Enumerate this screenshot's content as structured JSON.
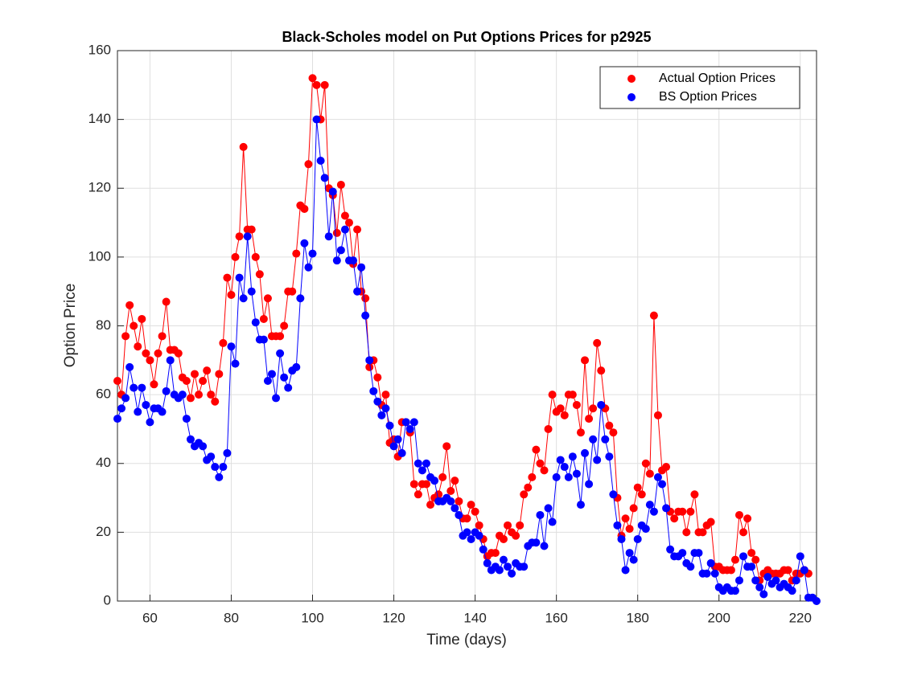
{
  "chart_data": {
    "type": "line",
    "title": "Black-Scholes model on Put Options Prices for p2925",
    "x_label": "Time (days)",
    "y_label": "Option Price",
    "x": [
      52,
      53,
      54,
      55,
      56,
      57,
      58,
      59,
      60,
      61,
      62,
      63,
      64,
      65,
      66,
      67,
      68,
      69,
      70,
      71,
      72,
      73,
      74,
      75,
      76,
      77,
      78,
      79,
      80,
      81,
      82,
      83,
      84,
      85,
      86,
      87,
      88,
      89,
      90,
      91,
      92,
      93,
      94,
      95,
      96,
      97,
      98,
      99,
      100,
      101,
      102,
      103,
      104,
      105,
      106,
      107,
      108,
      109,
      110,
      111,
      112,
      113,
      114,
      115,
      116,
      117,
      118,
      119,
      120,
      121,
      122,
      123,
      124,
      125,
      126,
      127,
      128,
      129,
      130,
      131,
      132,
      133,
      134,
      135,
      136,
      137,
      138,
      139,
      140,
      141,
      142,
      143,
      144,
      145,
      146,
      147,
      148,
      149,
      150,
      151,
      152,
      153,
      154,
      155,
      156,
      157,
      158,
      159,
      160,
      161,
      162,
      163,
      164,
      165,
      166,
      167,
      168,
      169,
      170,
      171,
      172,
      173,
      174,
      175,
      176,
      177,
      178,
      179,
      180,
      181,
      182,
      183,
      184,
      185,
      186,
      187,
      188,
      189,
      190,
      191,
      192,
      193,
      194,
      195,
      196,
      197,
      198,
      199,
      200,
      201,
      202,
      203,
      204,
      205,
      206,
      207,
      208,
      209,
      210,
      211,
      212,
      213,
      214,
      215,
      216,
      217,
      218,
      219,
      220,
      221,
      222,
      223,
      224
    ],
    "series": [
      {
        "name": "Actual Option Prices",
        "color": "#ff0000",
        "values": [
          64,
          60,
          77,
          86,
          80,
          74,
          82,
          72,
          70,
          63,
          72,
          77,
          87,
          73,
          73,
          72,
          65,
          64,
          59,
          66,
          60,
          64,
          67,
          60,
          58,
          66,
          75,
          94,
          89,
          100,
          106,
          132,
          108,
          108,
          100,
          95,
          82,
          88,
          77,
          77,
          77,
          80,
          90,
          90,
          101,
          115,
          114,
          127,
          152,
          150,
          140,
          150,
          120,
          118,
          107,
          121,
          112,
          110,
          98,
          108,
          90,
          88,
          68,
          70,
          65,
          57,
          60,
          46,
          47,
          42,
          52,
          52,
          49,
          34,
          31,
          34,
          34,
          28,
          30,
          31,
          36,
          45,
          32,
          35,
          29,
          24,
          24,
          28,
          26,
          22,
          18,
          13,
          14,
          14,
          19,
          18,
          22,
          20,
          19,
          22,
          31,
          33,
          36,
          44,
          40,
          38,
          50,
          60,
          55,
          56,
          54,
          60,
          60,
          57,
          49,
          70,
          53,
          56,
          75,
          67,
          56,
          51,
          49,
          30,
          19,
          24,
          21,
          27,
          33,
          31,
          40,
          37,
          83,
          54,
          38,
          39,
          26,
          24,
          26,
          26,
          20,
          26,
          31,
          20,
          20,
          22,
          23,
          10,
          10,
          9,
          9,
          9,
          12,
          25,
          20,
          24,
          14,
          12,
          6,
          8,
          9,
          8,
          8,
          8,
          9,
          9,
          6,
          8,
          8,
          9,
          8,
          null,
          null
        ]
      },
      {
        "name": "BS Option Prices",
        "color": "#0000ff",
        "values": [
          53,
          56,
          59,
          68,
          62,
          55,
          62,
          57,
          52,
          56,
          56,
          55,
          61,
          70,
          60,
          59,
          60,
          53,
          47,
          45,
          46,
          45,
          41,
          42,
          39,
          36,
          39,
          43,
          74,
          69,
          94,
          88,
          106,
          90,
          81,
          76,
          76,
          64,
          66,
          59,
          72,
          65,
          62,
          67,
          68,
          88,
          104,
          97,
          101,
          140,
          128,
          123,
          106,
          119,
          99,
          102,
          108,
          99,
          99,
          90,
          97,
          83,
          70,
          61,
          58,
          54,
          56,
          51,
          45,
          47,
          43,
          52,
          50,
          52,
          40,
          38,
          40,
          36,
          35,
          29,
          29,
          30,
          29,
          27,
          25,
          19,
          20,
          18,
          20,
          19,
          15,
          11,
          9,
          10,
          9,
          12,
          10,
          8,
          11,
          10,
          10,
          16,
          17,
          17,
          25,
          16,
          27,
          23,
          36,
          41,
          39,
          36,
          42,
          37,
          28,
          43,
          34,
          47,
          41,
          57,
          47,
          42,
          31,
          22,
          18,
          9,
          14,
          12,
          18,
          22,
          21,
          28,
          26,
          36,
          34,
          27,
          15,
          13,
          13,
          14,
          11,
          10,
          14,
          14,
          8,
          8,
          11,
          8,
          4,
          3,
          4,
          3,
          3,
          6,
          13,
          10,
          10,
          6,
          4,
          2,
          7,
          5,
          6,
          4,
          5,
          4,
          3,
          6,
          13,
          9,
          1,
          1,
          0
        ]
      }
    ],
    "xlim": [
      52,
      224
    ],
    "ylim": [
      0,
      160
    ],
    "xticks": [
      60,
      80,
      100,
      120,
      140,
      160,
      180,
      200,
      220
    ],
    "yticks": [
      0,
      20,
      40,
      60,
      80,
      100,
      120,
      140,
      160
    ],
    "grid": true,
    "legend": "upper right"
  }
}
